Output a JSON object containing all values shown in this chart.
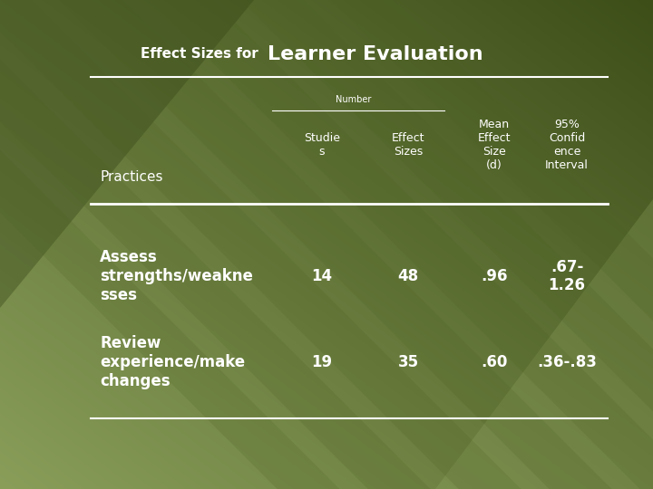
{
  "title_prefix": "Effect Sizes for ",
  "title_bold": "Learner Evaluation",
  "bg_corners": {
    "top_left": "#3d4e18",
    "top_right": "#5a6e28",
    "bottom_left": "#7a8e4a",
    "bottom_right": "#8a9e5a"
  },
  "diagonal_line_color": "#6a7e38",
  "text_color": "#ffffff",
  "line_color": "#ffffff",
  "header_sub": "Number",
  "col_headers": [
    "Studie\ns",
    "Effect\nSizes",
    "Mean\nEffect\nSize\n(d)",
    "95%\nConfid\nence\nInterval"
  ],
  "row_label_header": "Practices",
  "title_prefix_fontsize": 11,
  "title_bold_fontsize": 16,
  "header_fontsize": 9,
  "number_fontsize": 7,
  "data_fontsize": 12,
  "practices_fontsize": 11,
  "rows": [
    {
      "label": "Assess\nstrengths/weakne\nsses",
      "studies": "14",
      "effect_sizes": "48",
      "mean_effect": ".96",
      "ci": ".67-\n1.26"
    },
    {
      "label": "Review\nexperience/make\nchanges",
      "studies": "19",
      "effect_sizes": "35",
      "mean_effect": ".60",
      "ci": ".36-.83"
    }
  ]
}
